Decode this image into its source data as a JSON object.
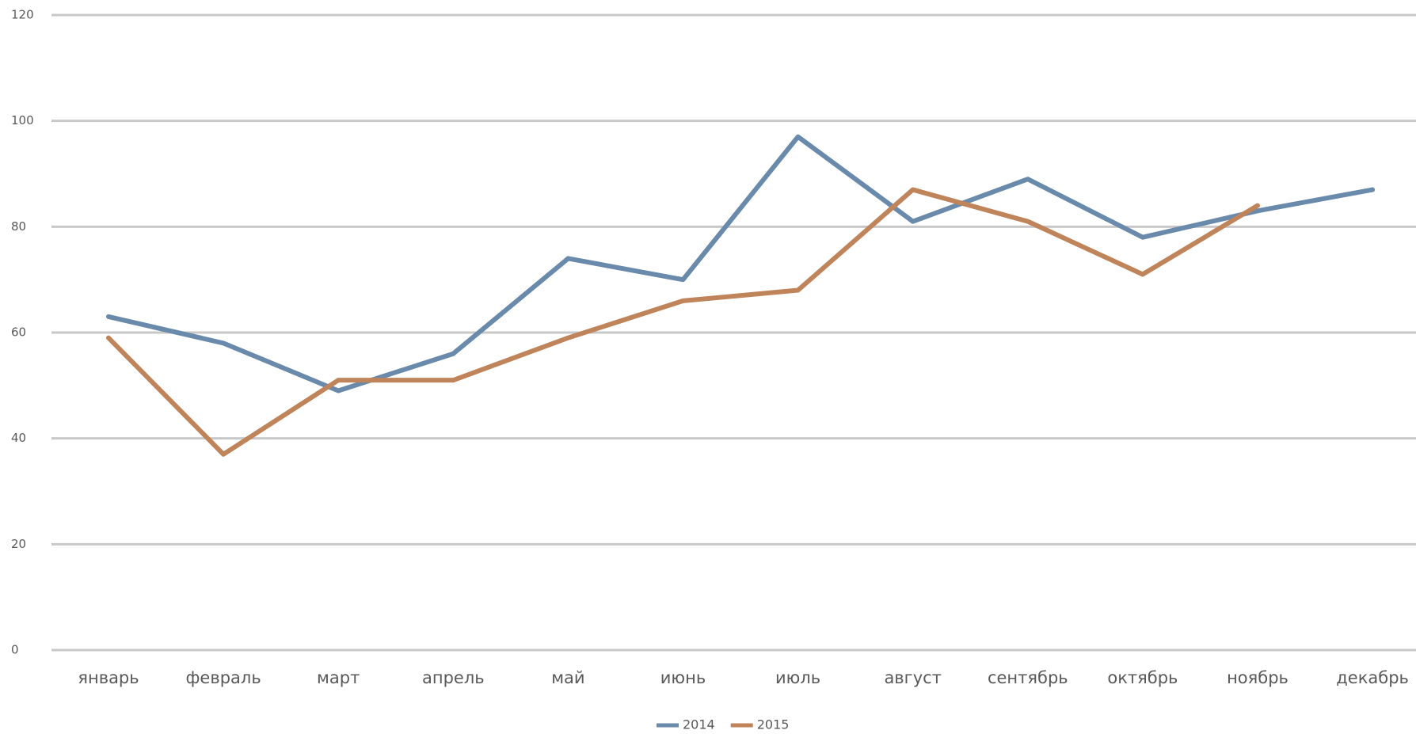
{
  "chart_data": {
    "type": "line",
    "categories": [
      "январь",
      "февраль",
      "март",
      "апрель",
      "май",
      "июнь",
      "июль",
      "август",
      "сентябрь",
      "октябрь",
      "ноябрь",
      "декабрь"
    ],
    "series": [
      {
        "name": "2014",
        "color": "#6a8aab",
        "values": [
          63,
          58,
          49,
          56,
          74,
          70,
          97,
          81,
          89,
          78,
          83,
          87
        ]
      },
      {
        "name": "2015",
        "color": "#c0845a",
        "values": [
          59,
          37,
          51,
          51,
          59,
          66,
          68,
          87,
          81,
          71,
          84,
          null
        ]
      }
    ],
    "ylim": [
      0,
      120
    ],
    "yticks": [
      0,
      20,
      40,
      60,
      80,
      100,
      120
    ],
    "grid": true,
    "legend": "bottom"
  }
}
